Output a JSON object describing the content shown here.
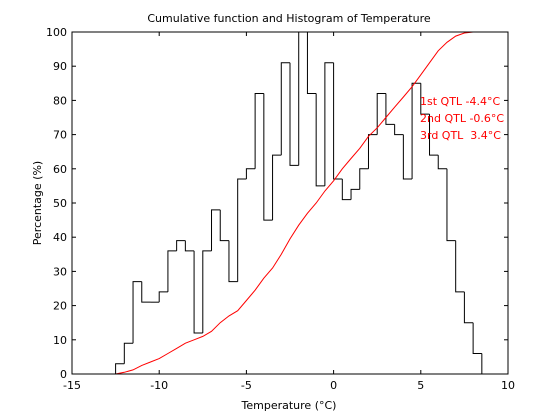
{
  "chart_data": {
    "type": "histogram_with_line",
    "title": "Cumulative function and Histogram of Temperature",
    "xlabel": "Temperature (°C)",
    "ylabel": "Percentage (%)",
    "xlim": [
      -15,
      10
    ],
    "ylim": [
      0,
      100
    ],
    "xticks": [
      -15,
      -10,
      -5,
      0,
      5,
      10
    ],
    "yticks": [
      0,
      10,
      20,
      30,
      40,
      50,
      60,
      70,
      80,
      90,
      100
    ],
    "grid": false,
    "colors": {
      "histogram": "#000000",
      "cumulative": "#ff0000",
      "annotations": "#ff0000"
    },
    "series": [
      {
        "kind": "histogram_step",
        "bin_edges": [
          -12.5,
          -12.0,
          -11.5,
          -11.0,
          -10.5,
          -10.0,
          -9.5,
          -9.0,
          -8.5,
          -8.0,
          -7.5,
          -7.0,
          -6.5,
          -6.0,
          -5.5,
          -5.0,
          -4.5,
          -4.0,
          -3.5,
          -3.0,
          -2.5,
          -2.0,
          -1.5,
          -1.0,
          -0.5,
          0.0,
          0.5,
          1.0,
          1.5,
          2.0,
          2.5,
          3.0,
          3.5,
          4.0,
          4.5,
          5.0,
          5.5,
          6.0,
          6.5,
          7.0,
          7.5,
          8.0,
          8.5,
          9.0
        ],
        "values": [
          3,
          9,
          27,
          21,
          21,
          24,
          36,
          39,
          36,
          12,
          36,
          48,
          39,
          27,
          57,
          60,
          82,
          45,
          64,
          91,
          61,
          100,
          82,
          55,
          91,
          57,
          51,
          54,
          60,
          70,
          82,
          73,
          70,
          57,
          85,
          76,
          64,
          60,
          39,
          24,
          15,
          6,
          0
        ]
      },
      {
        "kind": "line",
        "x": [
          -15,
          -12.5,
          -12,
          -11.5,
          -11,
          -10.5,
          -10,
          -9.5,
          -9,
          -8.5,
          -8,
          -7.5,
          -7,
          -6.5,
          -6,
          -5.5,
          -5,
          -4.5,
          -4,
          -3.5,
          -3,
          -2.5,
          -2,
          -1.5,
          -1,
          -0.5,
          0,
          0.5,
          1,
          1.5,
          2,
          2.5,
          3,
          3.5,
          4,
          4.5,
          5,
          5.5,
          6,
          6.5,
          7,
          7.5,
          8,
          8.5,
          10
        ],
        "y": [
          0,
          0,
          0.5,
          1.2,
          2.5,
          3.5,
          4.5,
          6,
          7.5,
          9,
          10,
          11,
          12.5,
          15,
          17,
          18.5,
          21.5,
          24.5,
          28,
          31,
          35,
          39.5,
          43.5,
          47,
          50,
          53.5,
          56.5,
          60,
          63,
          66,
          69.5,
          72,
          75,
          78,
          81,
          84,
          87.5,
          91,
          94.5,
          97,
          98.8,
          99.7,
          100,
          100,
          100
        ]
      }
    ],
    "annotations": [
      "1st QTL -4.4°C",
      "2nd QTL -0.6°C",
      "3rd QTL  3.4°C"
    ]
  }
}
